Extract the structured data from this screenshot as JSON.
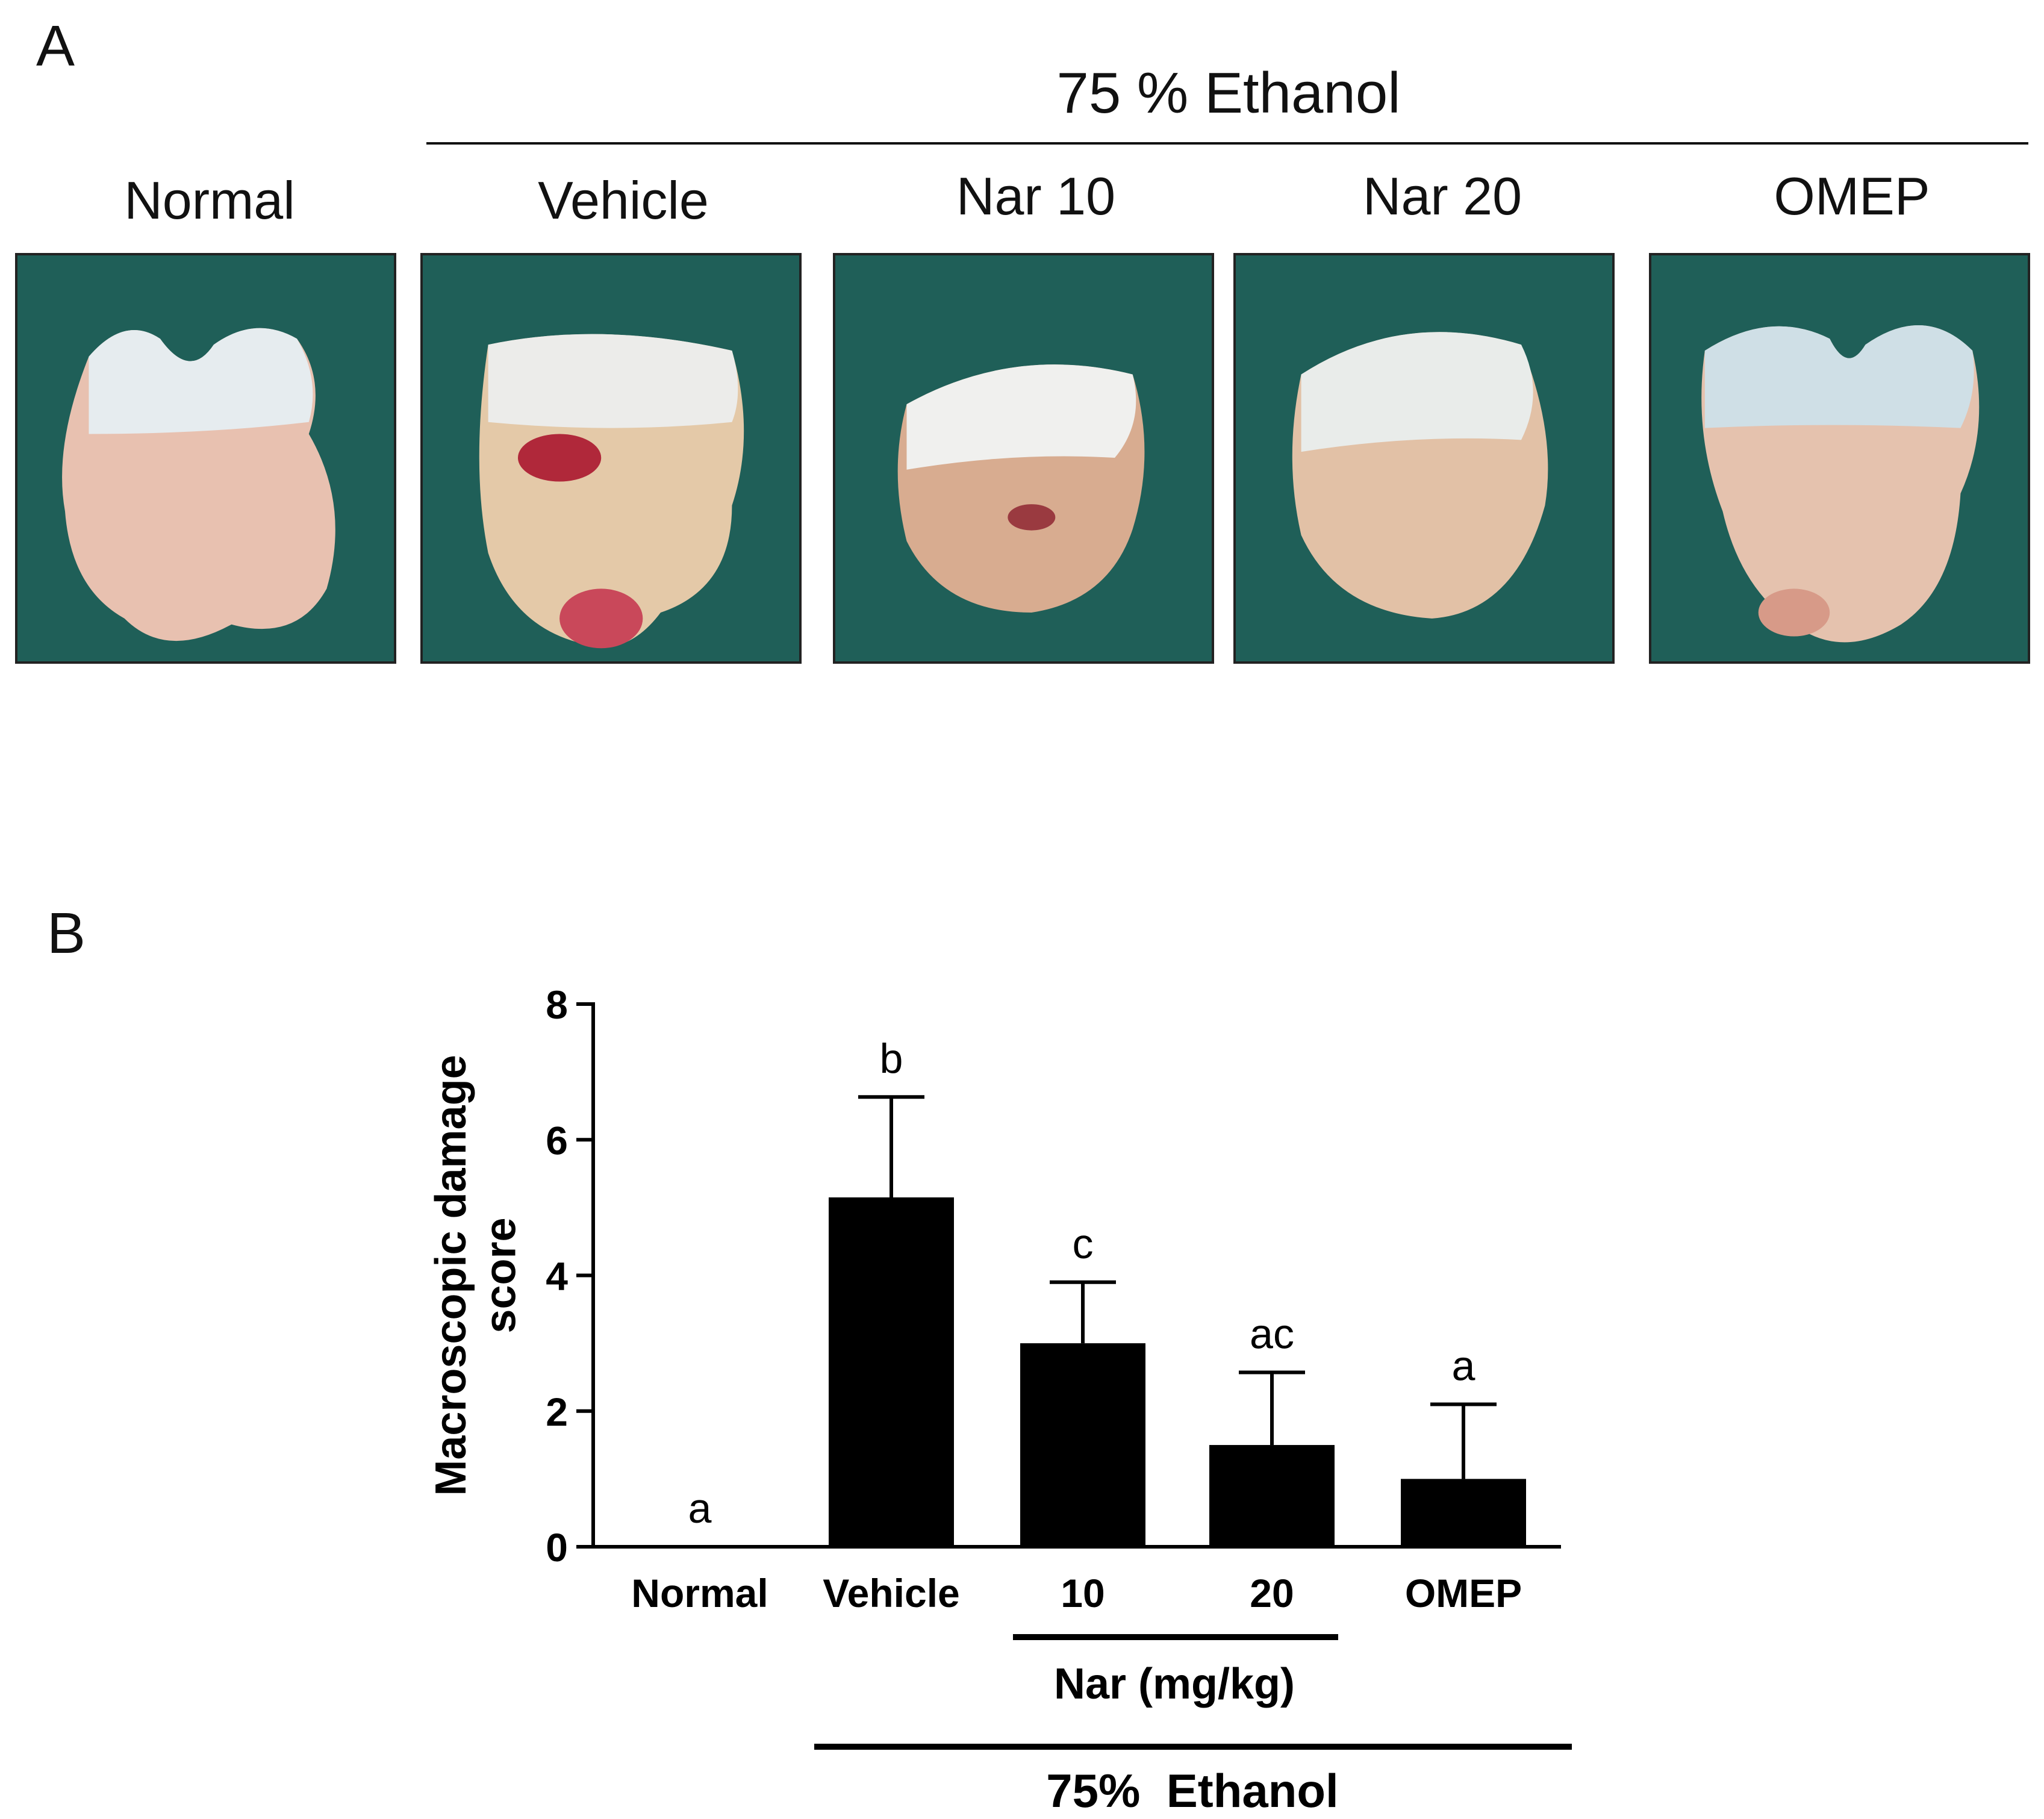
{
  "panel_a": {
    "letter": "A",
    "group_title": "75 % Ethanol",
    "columns": [
      "Normal",
      "Vehicle",
      "Nar 10",
      "Nar 20",
      "OMEP"
    ],
    "photo_background": "#1f5f58"
  },
  "panel_b": {
    "letter": "B"
  },
  "chart_data": {
    "type": "bar",
    "ylabel": "Macroscopic damage score",
    "ylim": [
      0,
      8
    ],
    "yticks": [
      0,
      2,
      4,
      6,
      8
    ],
    "categories": [
      "Normal",
      "Vehicle",
      "10",
      "20",
      "OMEP"
    ],
    "values": [
      0,
      5.15,
      3.0,
      1.5,
      1.0
    ],
    "errors": [
      0,
      1.48,
      0.9,
      1.07,
      1.1
    ],
    "significance_letters": [
      "a",
      "b",
      "c",
      "ac",
      "a"
    ],
    "bar_color": "#000000",
    "group_labels": {
      "nar": "Nar (mg/kg)",
      "ethanol": "75%  Ethanol"
    }
  }
}
